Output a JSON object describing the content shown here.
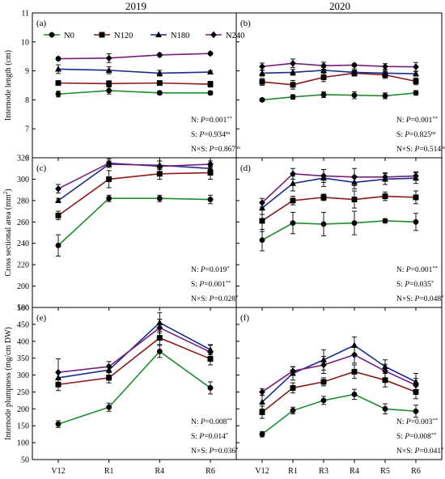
{
  "figure": {
    "years": [
      "2019",
      "2020"
    ],
    "x_categories": {
      "2019": [
        "V12",
        "R1",
        "R4",
        "R6"
      ],
      "2020": [
        "V12",
        "R1",
        "R3",
        "R4",
        "R5",
        "R6"
      ]
    },
    "legend": [
      "N0",
      "N120",
      "N180",
      "N240"
    ]
  },
  "chart_data": [
    {
      "type": "line",
      "panel": "(a)",
      "year": "2019",
      "ylabel": "Internode length (cm)",
      "ylim": [
        6,
        11
      ],
      "yticks": [
        6,
        7,
        8,
        9,
        10,
        11
      ],
      "categories": [
        "V12",
        "R1",
        "R4",
        "R6"
      ],
      "series": [
        {
          "name": "N0",
          "color": "#1e8c2f",
          "marker": "circle",
          "values": [
            8.2,
            8.32,
            8.24,
            8.24
          ],
          "errors": [
            0.1,
            0.12,
            0.06,
            0.06
          ]
        },
        {
          "name": "N120",
          "color": "#8b1a1a",
          "marker": "square",
          "values": [
            8.58,
            8.56,
            8.58,
            8.54
          ],
          "errors": [
            0.05,
            0.1,
            0.05,
            0.1
          ]
        },
        {
          "name": "N180",
          "color": "#1a2c8c",
          "marker": "triangle",
          "values": [
            9.06,
            9.02,
            8.92,
            8.96
          ],
          "errors": [
            0.15,
            0.12,
            0.1,
            0.04
          ]
        },
        {
          "name": "N240",
          "color": "#7a1e7a",
          "marker": "diamond",
          "values": [
            9.42,
            9.44,
            9.55,
            9.6
          ],
          "errors": [
            0.06,
            0.15,
            0.06,
            0.05
          ]
        }
      ],
      "annotations": [
        {
          "label": "N: ",
          "p": "P",
          "value": "=0.001",
          "sup": "**"
        },
        {
          "label": "S: ",
          "p": "P",
          "value": "=0.934",
          "sup": "ns"
        },
        {
          "label": "N×S: ",
          "p": "P",
          "value": "=0.867",
          "sup": "ns"
        }
      ]
    },
    {
      "type": "line",
      "panel": "(b)",
      "year": "2020",
      "ylabel": "",
      "ylim": [
        6,
        11
      ],
      "yticks": [
        6,
        7,
        8,
        9,
        10,
        11
      ],
      "categories": [
        "V12",
        "R1",
        "R3",
        "R4",
        "R5",
        "R6"
      ],
      "series": [
        {
          "name": "N0",
          "color": "#1e8c2f",
          "marker": "circle",
          "values": [
            8.0,
            8.1,
            8.18,
            8.16,
            8.14,
            8.24
          ],
          "errors": [
            0.05,
            0.08,
            0.1,
            0.12,
            0.1,
            0.08
          ]
        },
        {
          "name": "N120",
          "color": "#8b1a1a",
          "marker": "square",
          "values": [
            8.62,
            8.52,
            8.78,
            8.92,
            8.86,
            8.64
          ],
          "errors": [
            0.12,
            0.15,
            0.15,
            0.1,
            0.12,
            0.12
          ]
        },
        {
          "name": "N180",
          "color": "#1a2c8c",
          "marker": "triangle",
          "values": [
            8.92,
            8.95,
            9.02,
            8.95,
            8.92,
            8.9
          ],
          "errors": [
            0.1,
            0.1,
            0.1,
            0.12,
            0.1,
            0.08
          ]
        },
        {
          "name": "N240",
          "color": "#7a1e7a",
          "marker": "diamond",
          "values": [
            9.15,
            9.26,
            9.18,
            9.2,
            9.15,
            9.14
          ],
          "errors": [
            0.12,
            0.15,
            0.12,
            0.05,
            0.1,
            0.15
          ]
        }
      ],
      "annotations": [
        {
          "label": "N: ",
          "p": "P",
          "value": "=0.001",
          "sup": "**"
        },
        {
          "label": "S: ",
          "p": "P",
          "value": "=0.825",
          "sup": "ns"
        },
        {
          "label": "N×S: ",
          "p": "P",
          "value": "=0.514",
          "sup": "ns"
        }
      ]
    },
    {
      "type": "line",
      "panel": "(c)",
      "year": "2019",
      "ylabel": "Cross sectional area (mm",
      "ylabel_sup": "2",
      "ylabel_end": ")",
      "ylim": [
        180,
        320
      ],
      "yticks": [
        180,
        200,
        220,
        240,
        260,
        280,
        300,
        320
      ],
      "categories": [
        "V12",
        "R1",
        "R4",
        "R6"
      ],
      "series": [
        {
          "name": "N0",
          "color": "#1e8c2f",
          "marker": "circle",
          "values": [
            238,
            282,
            282,
            281
          ],
          "errors": [
            10,
            3,
            3,
            4
          ]
        },
        {
          "name": "N120",
          "color": "#8b1a1a",
          "marker": "square",
          "values": [
            266,
            300,
            305,
            306
          ],
          "errors": [
            4,
            8,
            5,
            6
          ]
        },
        {
          "name": "N180",
          "color": "#1a2c8c",
          "marker": "triangle",
          "values": [
            280,
            314,
            313,
            310
          ],
          "errors": [
            2,
            3,
            4,
            3
          ]
        },
        {
          "name": "N240",
          "color": "#7a1e7a",
          "marker": "diamond",
          "values": [
            291,
            315,
            312,
            314
          ],
          "errors": [
            4,
            4,
            5,
            3
          ]
        }
      ],
      "annotations": [
        {
          "label": "N: ",
          "p": "P",
          "value": "=0.019",
          "sup": "*"
        },
        {
          "label": "S: ",
          "p": "P",
          "value": "=0.001",
          "sup": "**"
        },
        {
          "label": "N×S: ",
          "p": "P",
          "value": "=0.028",
          "sup": "*"
        }
      ]
    },
    {
      "type": "line",
      "panel": "(d)",
      "year": "2020",
      "ylabel": "",
      "ylim": [
        180,
        320
      ],
      "yticks": [
        180,
        200,
        220,
        240,
        260,
        280,
        300,
        320
      ],
      "categories": [
        "V12",
        "R1",
        "R3",
        "R4",
        "R5",
        "R6"
      ],
      "series": [
        {
          "name": "N0",
          "color": "#1e8c2f",
          "marker": "circle",
          "values": [
            243,
            259,
            258,
            259,
            261,
            260
          ],
          "errors": [
            10,
            10,
            11,
            11,
            2,
            8
          ]
        },
        {
          "name": "N120",
          "color": "#8b1a1a",
          "marker": "square",
          "values": [
            261,
            280,
            283,
            281,
            284,
            283
          ],
          "errors": [
            10,
            4,
            3,
            8,
            4,
            6
          ]
        },
        {
          "name": "N180",
          "color": "#1a2c8c",
          "marker": "triangle",
          "values": [
            273,
            296,
            301,
            297,
            300,
            301
          ],
          "errors": [
            6,
            7,
            8,
            6,
            5,
            5
          ]
        },
        {
          "name": "N240",
          "color": "#7a1e7a",
          "marker": "diamond",
          "values": [
            278,
            305,
            303,
            302,
            302,
            303
          ],
          "errors": [
            4,
            5,
            6,
            8,
            4,
            4
          ]
        }
      ],
      "annotations": [
        {
          "label": "N: ",
          "p": "P",
          "value": "=0.001",
          "sup": "**"
        },
        {
          "label": "S: ",
          "p": "P",
          "value": "=0.035",
          "sup": "*"
        },
        {
          "label": "N×S: ",
          "p": "P",
          "value": "=0.048",
          "sup": "*"
        }
      ]
    },
    {
      "type": "line",
      "panel": "(e)",
      "year": "2019",
      "ylabel": "Internode plumpness (mg/cm DW)",
      "ylim": [
        50,
        500
      ],
      "yticks": [
        50,
        100,
        150,
        200,
        250,
        300,
        350,
        400,
        450,
        500
      ],
      "categories": [
        "V12",
        "R1",
        "R4",
        "R6"
      ],
      "series": [
        {
          "name": "N0",
          "color": "#1e8c2f",
          "marker": "circle",
          "values": [
            155,
            205,
            370,
            262
          ],
          "errors": [
            10,
            12,
            18,
            18
          ]
        },
        {
          "name": "N120",
          "color": "#8b1a1a",
          "marker": "square",
          "values": [
            272,
            292,
            410,
            348
          ],
          "errors": [
            18,
            15,
            20,
            18
          ]
        },
        {
          "name": "N180",
          "color": "#1a2c8c",
          "marker": "triangle",
          "values": [
            292,
            315,
            455,
            375
          ],
          "errors": [
            18,
            15,
            30,
            15
          ]
        },
        {
          "name": "N240",
          "color": "#7a1e7a",
          "marker": "diamond",
          "values": [
            308,
            325,
            440,
            368
          ],
          "errors": [
            40,
            15,
            25,
            20
          ]
        }
      ],
      "annotations": [
        {
          "label": "N: ",
          "p": "P",
          "value": "=0.008",
          "sup": "**"
        },
        {
          "label": "S: ",
          "p": "P",
          "value": "=0.014",
          "sup": "*"
        },
        {
          "label": "N×S: ",
          "p": "P",
          "value": "=0.036",
          "sup": "*"
        }
      ]
    },
    {
      "type": "line",
      "panel": "(f)",
      "year": "2020",
      "ylabel": "",
      "ylim": [
        50,
        500
      ],
      "yticks": [
        50,
        100,
        150,
        200,
        250,
        300,
        350,
        400,
        450,
        500
      ],
      "categories": [
        "V12",
        "R1",
        "R3",
        "R4",
        "R5",
        "R6"
      ],
      "series": [
        {
          "name": "N0",
          "color": "#1e8c2f",
          "marker": "circle",
          "values": [
            125,
            195,
            225,
            243,
            200,
            193
          ],
          "errors": [
            8,
            10,
            12,
            15,
            15,
            18
          ]
        },
        {
          "name": "N120",
          "color": "#8b1a1a",
          "marker": "square",
          "values": [
            190,
            262,
            280,
            310,
            285,
            250
          ],
          "errors": [
            18,
            15,
            12,
            20,
            20,
            20
          ]
        },
        {
          "name": "N180",
          "color": "#1a2c8c",
          "marker": "triangle",
          "values": [
            220,
            305,
            345,
            388,
            325,
            280
          ],
          "errors": [
            20,
            20,
            30,
            25,
            20,
            25
          ]
        },
        {
          "name": "N240",
          "color": "#7a1e7a",
          "marker": "diamond",
          "values": [
            250,
            312,
            330,
            360,
            312,
            270
          ],
          "errors": [
            10,
            12,
            25,
            25,
            20,
            20
          ]
        }
      ],
      "annotations": [
        {
          "label": "N: ",
          "p": "P",
          "value": "=0.003",
          "sup": "**"
        },
        {
          "label": "S: ",
          "p": "P",
          "value": "=0.008",
          "sup": "**"
        },
        {
          "label": "N×S: ",
          "p": "P",
          "value": "=0.041",
          "sup": "*"
        }
      ]
    }
  ]
}
